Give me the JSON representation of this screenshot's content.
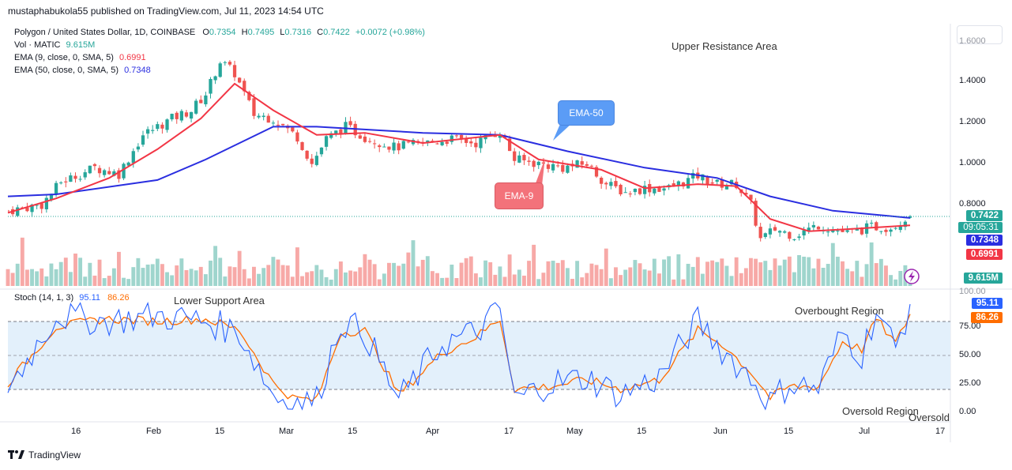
{
  "header": {
    "publisher_line": "mustaphabukola55 published on TradingView.com, Jul 11, 2023 14:54 UTC"
  },
  "legend": {
    "symbol": "Polygon / United States Dollar, 1D, COINBASE",
    "open_label": "O",
    "open": "0.7354",
    "high_label": "H",
    "high": "0.7495",
    "low_label": "L",
    "low": "0.7316",
    "close_label": "C",
    "close": "0.7422",
    "change": "+0.0072 (+0.98%)",
    "volume_label": "Vol · MATIC",
    "volume": "9.615M",
    "ema9_label": "EMA (9, close, 0, SMA, 5)",
    "ema9_value": "0.6991",
    "ema50_label": "EMA (50, close, 0, SMA, 5)",
    "ema50_value": "0.7348"
  },
  "stoch_legend": {
    "label": "Stoch (14, 1, 3)",
    "k": "95.11",
    "d": "86.26"
  },
  "annotations": {
    "upper": "Upper Resistance Area",
    "lower": "Lower Support Area",
    "overbought": "Overbought Region",
    "oversold": "Oversold Region",
    "oversold_clipped": "Oversold",
    "ema50_callout": "EMA-50",
    "ema9_callout": "EMA-9"
  },
  "price_axis": {
    "ticks": [
      "1.6000",
      "1.4000",
      "1.2000",
      "1.0000",
      "0.8000"
    ],
    "badges": {
      "price": "0.7422",
      "countdown": "09:05:31",
      "ema50": "0.7348",
      "ema9": "0.6991",
      "volume": "9.615M"
    }
  },
  "stoch_axis": {
    "ticks": [
      "100.00",
      "75.00",
      "50.00",
      "25.00",
      "0.00"
    ],
    "badges": {
      "k": "95.11",
      "d": "86.26"
    }
  },
  "time_axis": {
    "ticks": [
      "16",
      "Feb",
      "15",
      "Mar",
      "15",
      "Apr",
      "17",
      "May",
      "15",
      "Jun",
      "15",
      "Jul",
      "17"
    ]
  },
  "footer": {
    "brand": "TradingView"
  },
  "colors": {
    "up": "#26a69a",
    "down": "#ef5350",
    "vol_up": "#9fd5cd",
    "vol_down": "#f7a9a7",
    "ema9": "#f23645",
    "ema50": "#2a2ee0",
    "stoch_k": "#2962ff",
    "stoch_d": "#ff6d00",
    "band": "#e3f0fb",
    "ema50_callout": "#5b9cf6",
    "ema9_callout": "#f3727a"
  },
  "chart_data": [
    {
      "type": "candlestick",
      "title": "Polygon / United States Dollar, 1D, COINBASE",
      "x_range": [
        "2023-01-05",
        "2023-07-11"
      ],
      "ylim": [
        0.6,
        1.6
      ],
      "grid": false,
      "last": {
        "open": 0.7354,
        "high": 0.7495,
        "low": 0.7316,
        "close": 0.7422
      },
      "close_path": [
        [
          "2023-01-05",
          0.77
        ],
        [
          "2023-01-12",
          0.8
        ],
        [
          "2023-01-16",
          0.91
        ],
        [
          "2023-01-23",
          0.98
        ],
        [
          "2023-01-28",
          0.95
        ],
        [
          "2023-02-02",
          1.14
        ],
        [
          "2023-02-08",
          1.22
        ],
        [
          "2023-02-12",
          1.26
        ],
        [
          "2023-02-15",
          1.34
        ],
        [
          "2023-02-18",
          1.5
        ],
        [
          "2023-02-21",
          1.44
        ],
        [
          "2023-02-25",
          1.24
        ],
        [
          "2023-03-01",
          1.22
        ],
        [
          "2023-03-06",
          1.13
        ],
        [
          "2023-03-09",
          1.0
        ],
        [
          "2023-03-12",
          1.12
        ],
        [
          "2023-03-16",
          1.18
        ],
        [
          "2023-03-20",
          1.13
        ],
        [
          "2023-03-26",
          1.08
        ],
        [
          "2023-04-01",
          1.1
        ],
        [
          "2023-04-07",
          1.12
        ],
        [
          "2023-04-12",
          1.1
        ],
        [
          "2023-04-17",
          1.16
        ],
        [
          "2023-04-20",
          1.02
        ],
        [
          "2023-04-25",
          1.0
        ],
        [
          "2023-04-30",
          0.98
        ],
        [
          "2023-05-05",
          1.0
        ],
        [
          "2023-05-09",
          0.9
        ],
        [
          "2023-05-13",
          0.86
        ],
        [
          "2023-05-17",
          0.88
        ],
        [
          "2023-05-22",
          0.88
        ],
        [
          "2023-05-28",
          0.94
        ],
        [
          "2023-06-01",
          0.9
        ],
        [
          "2023-06-05",
          0.9
        ],
        [
          "2023-06-08",
          0.8
        ],
        [
          "2023-06-10",
          0.63
        ],
        [
          "2023-06-13",
          0.68
        ],
        [
          "2023-06-17",
          0.65
        ],
        [
          "2023-06-22",
          0.7
        ],
        [
          "2023-06-28",
          0.66
        ],
        [
          "2023-07-03",
          0.69
        ],
        [
          "2023-07-07",
          0.69
        ],
        [
          "2023-07-11",
          0.7422
        ]
      ]
    },
    {
      "type": "line",
      "title": "EMA",
      "series": [
        {
          "name": "EMA (9, close, 0, SMA, 5)",
          "color": "#f23645",
          "last": 0.6991,
          "points": [
            [
              "2023-01-05",
              0.76
            ],
            [
              "2023-01-15",
              0.83
            ],
            [
              "2023-01-26",
              0.93
            ],
            [
              "2023-02-05",
              1.07
            ],
            [
              "2023-02-14",
              1.22
            ],
            [
              "2023-02-21",
              1.39
            ],
            [
              "2023-03-01",
              1.26
            ],
            [
              "2023-03-10",
              1.14
            ],
            [
              "2023-03-20",
              1.15
            ],
            [
              "2023-04-01",
              1.1
            ],
            [
              "2023-04-17",
              1.14
            ],
            [
              "2023-04-25",
              1.02
            ],
            [
              "2023-05-08",
              0.97
            ],
            [
              "2023-05-17",
              0.88
            ],
            [
              "2023-05-28",
              0.9
            ],
            [
              "2023-06-05",
              0.89
            ],
            [
              "2023-06-12",
              0.73
            ],
            [
              "2023-06-20",
              0.67
            ],
            [
              "2023-06-28",
              0.68
            ],
            [
              "2023-07-05",
              0.69
            ],
            [
              "2023-07-11",
              0.6991
            ]
          ]
        },
        {
          "name": "EMA (50, close, 0, SMA, 5)",
          "color": "#2a2ee0",
          "last": 0.7348,
          "points": [
            [
              "2023-01-05",
              0.84
            ],
            [
              "2023-01-15",
              0.85
            ],
            [
              "2023-02-05",
              0.92
            ],
            [
              "2023-02-15",
              1.02
            ],
            [
              "2023-03-01",
              1.18
            ],
            [
              "2023-03-10",
              1.18
            ],
            [
              "2023-04-01",
              1.15
            ],
            [
              "2023-04-17",
              1.14
            ],
            [
              "2023-05-01",
              1.06
            ],
            [
              "2023-05-17",
              0.98
            ],
            [
              "2023-06-01",
              0.93
            ],
            [
              "2023-06-12",
              0.84
            ],
            [
              "2023-06-25",
              0.77
            ],
            [
              "2023-07-11",
              0.7348
            ]
          ]
        }
      ]
    },
    {
      "type": "bar",
      "title": "Vol · MATIC",
      "last": "9.615M",
      "series": [
        {
          "name": "Vol · MATIC",
          "last": "9.615M"
        }
      ]
    },
    {
      "type": "line",
      "title": "Stoch (14, 1, 3)",
      "ylim": [
        0,
        100
      ],
      "grid": false,
      "reference_lines": [
        80,
        50,
        20
      ],
      "series": [
        {
          "name": "%K",
          "color": "#2962ff",
          "last": 95.11,
          "x": [
            "2023-01-05",
            "2023-01-15",
            "2023-01-25",
            "2023-02-05",
            "2023-02-15",
            "2023-02-22",
            "2023-03-01",
            "2023-03-05",
            "2023-03-10",
            "2023-03-15",
            "2023-03-20",
            "2023-03-27",
            "2023-04-05",
            "2023-04-12",
            "2023-04-17",
            "2023-04-20",
            "2023-04-27",
            "2023-05-05",
            "2023-05-12",
            "2023-05-20",
            "2023-05-28",
            "2023-06-02",
            "2023-06-08",
            "2023-06-12",
            "2023-06-16",
            "2023-06-22",
            "2023-06-27",
            "2023-07-01",
            "2023-07-04",
            "2023-07-08",
            "2023-07-11"
          ],
          "values": [
            20,
            85,
            80,
            85,
            80,
            70,
            15,
            8,
            10,
            80,
            70,
            10,
            60,
            70,
            90,
            10,
            25,
            30,
            15,
            30,
            80,
            55,
            30,
            8,
            25,
            20,
            70,
            50,
            90,
            55,
            95.11
          ]
        },
        {
          "name": "%D",
          "color": "#ff6d00",
          "last": 86.26,
          "x": [
            "2023-01-05",
            "2023-01-15",
            "2023-01-25",
            "2023-02-05",
            "2023-02-15",
            "2023-02-22",
            "2023-03-01",
            "2023-03-05",
            "2023-03-10",
            "2023-03-15",
            "2023-03-20",
            "2023-03-27",
            "2023-04-05",
            "2023-04-12",
            "2023-04-17",
            "2023-04-20",
            "2023-04-27",
            "2023-05-05",
            "2023-05-12",
            "2023-05-20",
            "2023-05-28",
            "2023-06-02",
            "2023-06-08",
            "2023-06-12",
            "2023-06-16",
            "2023-06-22",
            "2023-06-27",
            "2023-07-01",
            "2023-07-04",
            "2023-07-08",
            "2023-07-11"
          ],
          "values": [
            25,
            75,
            82,
            80,
            82,
            72,
            25,
            12,
            10,
            70,
            72,
            15,
            52,
            66,
            82,
            20,
            22,
            28,
            20,
            28,
            72,
            60,
            35,
            12,
            22,
            22,
            62,
            55,
            82,
            60,
            86.26
          ]
        }
      ]
    }
  ]
}
